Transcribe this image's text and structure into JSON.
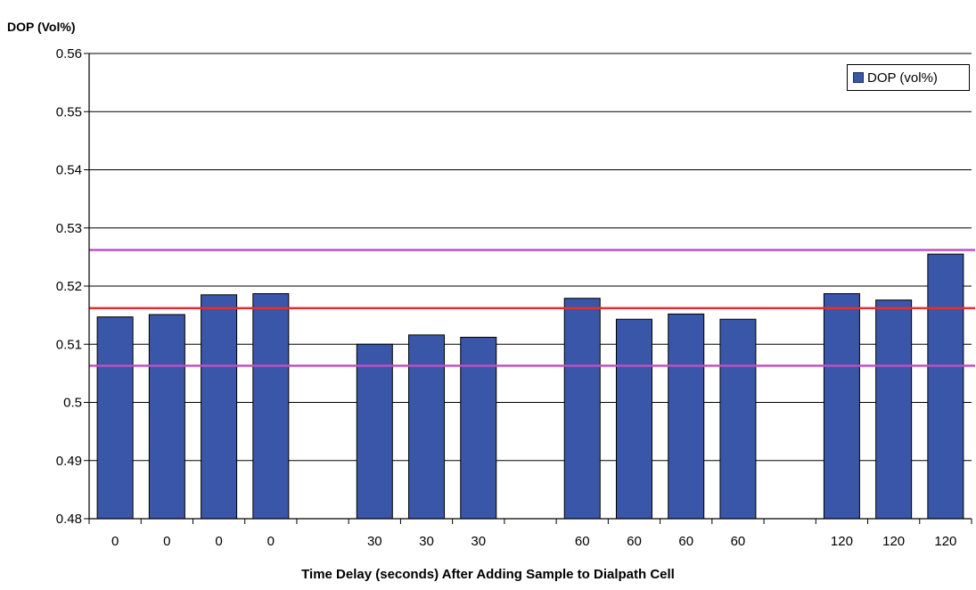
{
  "chart_data": {
    "type": "bar",
    "ylabel": "DOP (Vol%)",
    "xlabel": "Time Delay (seconds) After Adding Sample to Dialpath Cell",
    "ylim": [
      0.48,
      0.56
    ],
    "yticks": [
      "0.48",
      "0.49",
      "0.5",
      "0.51",
      "0.52",
      "0.53",
      "0.54",
      "0.55",
      "0.56"
    ],
    "categories": [
      "0",
      "0",
      "0",
      "0",
      "",
      "30",
      "30",
      "30",
      "",
      "60",
      "60",
      "60",
      "60",
      "",
      "120",
      "120",
      "120"
    ],
    "series": [
      {
        "name": "DOP (vol%)",
        "color": "#3a56a8",
        "values": [
          0.5147,
          0.5151,
          0.5185,
          0.5187,
          null,
          0.51,
          0.5116,
          0.5112,
          null,
          0.5179,
          0.5143,
          0.5152,
          0.5143,
          null,
          0.5187,
          0.5176,
          0.5255
        ]
      }
    ],
    "reference_lines": [
      {
        "value": 0.5262,
        "color": "#c050c0"
      },
      {
        "value": 0.5162,
        "color": "#e03030"
      },
      {
        "value": 0.5063,
        "color": "#c050c0"
      }
    ],
    "grid": true,
    "legend": "top-right"
  }
}
